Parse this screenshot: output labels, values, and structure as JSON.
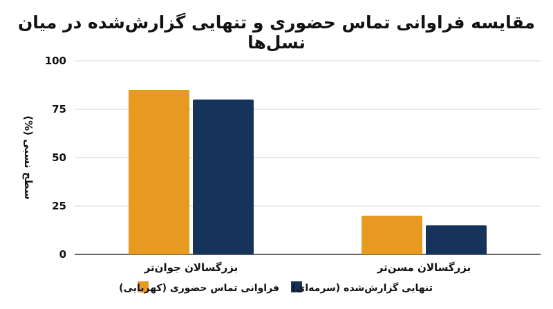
{
  "chart_data": {
    "type": "bar",
    "title": "مقایسه فراوانی تماس حضوری و تنهایی گزارش‌شده در میان نسل‌ها",
    "xlabel": "",
    "ylabel": "سطح نسبی (%)",
    "categories": [
      "بزرگسالان جوان‌تر",
      "بزرگسالان مسن‌تر"
    ],
    "series": [
      {
        "name": "فراوانی تماس حضوری (کهربایی)",
        "color": "#E89A20",
        "values": [
          85,
          20
        ]
      },
      {
        "name": "تنهایی گزارش‌شده (سرمه‌ای)",
        "color": "#16335A",
        "values": [
          80,
          15
        ]
      }
    ],
    "ylim": [
      0,
      100
    ],
    "yticks": [
      0,
      25,
      50,
      75,
      100
    ],
    "grid": true,
    "legend_position": "bottom"
  }
}
